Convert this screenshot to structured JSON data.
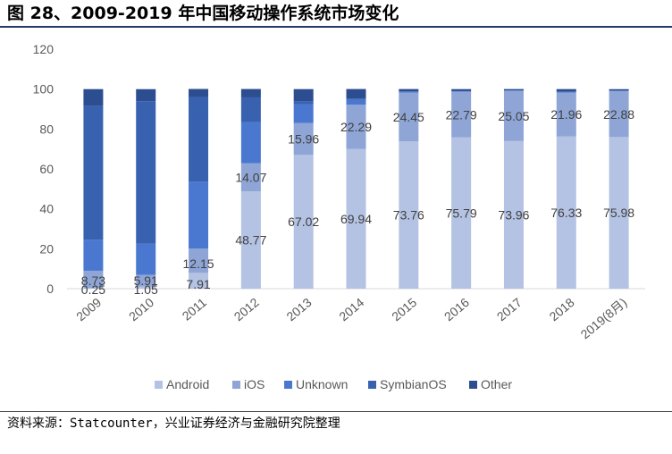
{
  "header": {
    "title": "图 28、2009-2019 年中国移动操作系统市场变化"
  },
  "footer": {
    "source": "资料来源：Statcounter，兴业证券经济与金融研究院整理"
  },
  "chart_data": {
    "type": "bar",
    "stacked": true,
    "title": "",
    "xlabel": "",
    "ylabel": "",
    "ylim": [
      0,
      120
    ],
    "yticks": [
      0,
      20,
      40,
      60,
      80,
      100,
      120
    ],
    "grid": false,
    "legend_position": "bottom",
    "categories": [
      "2009",
      "2010",
      "2011",
      "2012",
      "2013",
      "2014",
      "2015",
      "2016",
      "2017",
      "2018",
      "2019(8月)"
    ],
    "series": [
      {
        "name": "Android",
        "color": "#b4c2e3",
        "values": [
          0.25,
          1.05,
          7.91,
          48.77,
          67.02,
          69.94,
          73.76,
          75.79,
          73.96,
          76.33,
          75.98
        ],
        "labels": [
          "0.25",
          "1.05",
          "7.91",
          "48.77",
          "67.02",
          "69.94",
          "73.76",
          "75.79",
          "73.96",
          "76.33",
          "75.98"
        ]
      },
      {
        "name": "iOS",
        "color": "#8ea5d6",
        "values": [
          8.73,
          5.91,
          12.15,
          14.07,
          15.96,
          22.29,
          24.45,
          22.79,
          25.05,
          21.96,
          22.88
        ],
        "labels": [
          "8.73",
          "5.91",
          "12.15",
          "14.07",
          "15.96",
          "22.29",
          "24.45",
          "22.79",
          "25.05",
          "21.96",
          "22.88"
        ]
      },
      {
        "name": "Unknown",
        "color": "#4a78d0",
        "values": [
          15.5,
          15.5,
          33.5,
          20.5,
          9.5,
          2.5,
          0.5,
          0.3,
          0.3,
          0.3,
          0.3
        ],
        "labels": []
      },
      {
        "name": "SymbianOS",
        "color": "#3862b0",
        "values": [
          67.0,
          71.5,
          42.5,
          12.5,
          1.5,
          0.5,
          0.2,
          0.1,
          0.1,
          0.1,
          0.1
        ],
        "labels": []
      },
      {
        "name": "Other",
        "color": "#2c4d8f",
        "values": [
          8.5,
          6.0,
          4.0,
          4.2,
          6.0,
          4.8,
          1.1,
          1.0,
          0.6,
          1.3,
          0.7
        ],
        "labels": []
      }
    ]
  }
}
